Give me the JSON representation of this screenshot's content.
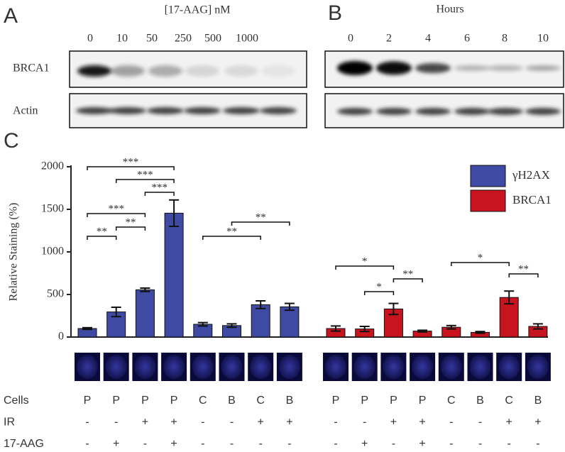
{
  "panels": {
    "A": {
      "label": "A",
      "title": "[17-AAG] nM",
      "lanes": [
        "0",
        "10",
        "50",
        "250",
        "500",
        "1000"
      ],
      "rows": [
        "BRCA1",
        "Actin"
      ]
    },
    "B": {
      "label": "B",
      "title": "Hours",
      "lanes": [
        "0",
        "2",
        "4",
        "6",
        "8",
        "10"
      ]
    }
  },
  "chart_data": {
    "type": "bar",
    "panel_label": "C",
    "y_label": "Relative Staining (%)",
    "ylim": [
      0,
      2000
    ],
    "yticks": [
      0,
      500,
      1000,
      1500,
      2000
    ],
    "series": [
      {
        "name": "γH2AX",
        "color": "#3f4aa3",
        "values": [
          100,
          295,
          555,
          1455,
          150,
          135,
          380,
          355
        ],
        "errors": [
          10,
          55,
          20,
          155,
          20,
          20,
          45,
          40
        ]
      },
      {
        "name": "BRCA1",
        "color": "#c8141e",
        "values": [
          100,
          95,
          330,
          70,
          115,
          55,
          465,
          125
        ],
        "errors": [
          30,
          30,
          65,
          10,
          20,
          10,
          75,
          30
        ]
      }
    ],
    "condition_labels": [
      "Cells",
      "IR",
      "17-AAG"
    ],
    "conditions": [
      [
        "P",
        "P",
        "P",
        "P",
        "C",
        "B",
        "C",
        "B"
      ],
      [
        "-",
        "-",
        "+",
        "+",
        "-",
        "-",
        "+",
        "+"
      ],
      [
        "-",
        "+",
        "-",
        "+",
        "-",
        "-",
        "-",
        "-"
      ]
    ],
    "significance": [
      {
        "series": 0,
        "from": 0,
        "to": 3,
        "label": "***"
      },
      {
        "series": 0,
        "from": 1,
        "to": 3,
        "label": "***"
      },
      {
        "series": 0,
        "from": 2,
        "to": 3,
        "label": "***"
      },
      {
        "series": 0,
        "from": 0,
        "to": 2,
        "label": "***"
      },
      {
        "series": 0,
        "from": 1,
        "to": 2,
        "label": "**"
      },
      {
        "series": 0,
        "from": 0,
        "to": 1,
        "label": "**"
      },
      {
        "series": 0,
        "from": 4,
        "to": 6,
        "label": "**"
      },
      {
        "series": 0,
        "from": 5,
        "to": 7,
        "label": "**"
      },
      {
        "series": 1,
        "from": 0,
        "to": 2,
        "label": "*"
      },
      {
        "series": 1,
        "from": 2,
        "to": 3,
        "label": "**"
      },
      {
        "series": 1,
        "from": 1,
        "to": 2,
        "label": "*"
      },
      {
        "series": 1,
        "from": 4,
        "to": 6,
        "label": "*"
      },
      {
        "series": 1,
        "from": 6,
        "to": 7,
        "label": "**"
      }
    ]
  }
}
